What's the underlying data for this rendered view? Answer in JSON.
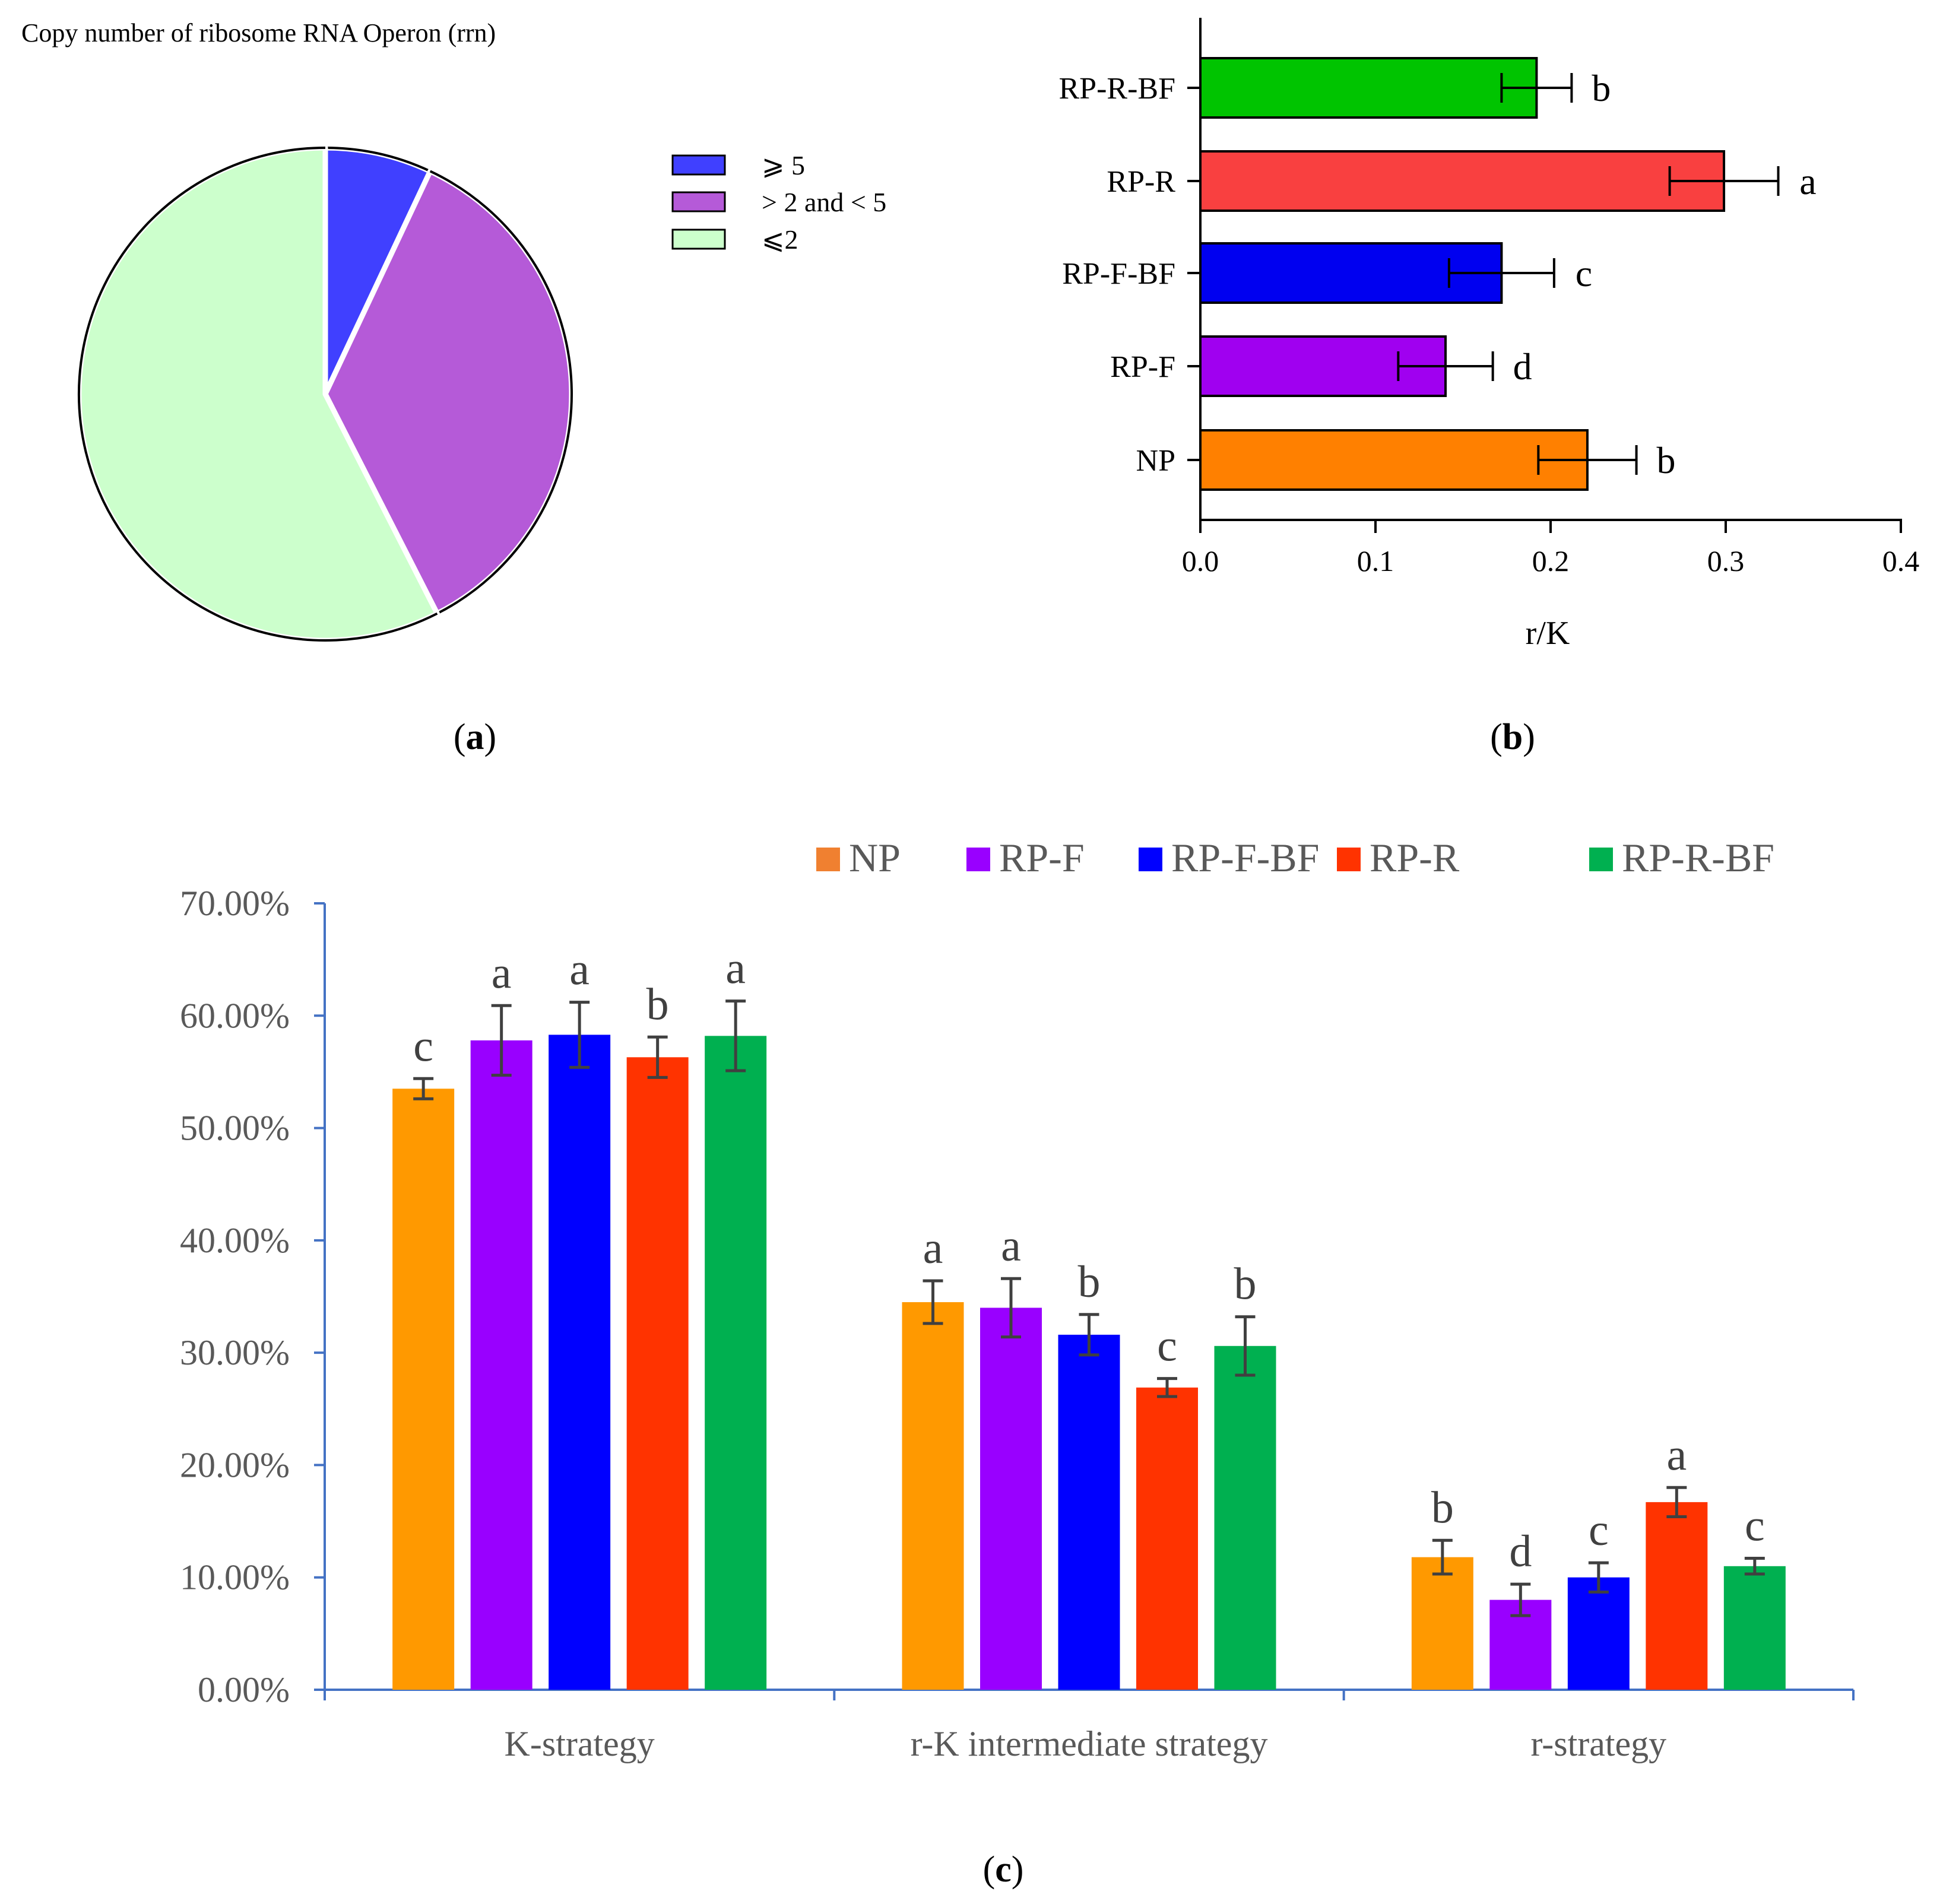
{
  "colors": {
    "NP": "#FF8000",
    "RP-F": "#A000F0",
    "RP-F-BF": "#0000F0",
    "RP-R": "#F94040",
    "RP-R-BF": "#00C400",
    "c_NP": "#FF9900",
    "c_NP_legend": "#F08030",
    "c_RP-F": "#9900FF",
    "c_RP-F-BF": "#0000FF",
    "c_RP-R": "#FF3300",
    "c_RP-R-BF": "#00B050",
    "pie_ge5": "#4040FF",
    "pie_2to5": "#B55AD8",
    "pie_le2": "#CCFFCC",
    "axis_c": "#4472C4",
    "tick_text_c": "#595959",
    "error_c": "#404040"
  },
  "panels": {
    "a_label": "a",
    "b_label": "b",
    "c_label": "c"
  },
  "chart_data": [
    {
      "id": "a",
      "type": "pie",
      "title": "Copy number of ribosome RNA Operon (rrn)",
      "slices": [
        {
          "label": "⩾ 5",
          "value": 7.0
        },
        {
          "label": "> 2 and < 5",
          "value": 35.5
        },
        {
          "label": "⩽2",
          "value": 57.5
        }
      ],
      "legend_position": "right"
    },
    {
      "id": "b",
      "type": "bar",
      "orientation": "horizontal",
      "categories": [
        "RP-R-BF",
        "RP-R",
        "RP-F-BF",
        "RP-F",
        "NP"
      ],
      "values": [
        0.192,
        0.299,
        0.172,
        0.14,
        0.221
      ],
      "errors": [
        0.02,
        0.031,
        0.03,
        0.027,
        0.028
      ],
      "significance": [
        "b",
        "a",
        "c",
        "d",
        "b"
      ],
      "xlabel": "r/K",
      "xlim": [
        0,
        0.4
      ],
      "xticks": [
        "0.0",
        "0.1",
        "0.2",
        "0.3",
        "0.4"
      ]
    },
    {
      "id": "c",
      "type": "bar",
      "categories": [
        "K-strategy",
        "r-K intermediate strategy",
        "r-strategy"
      ],
      "series": [
        {
          "name": "NP",
          "values": [
            53.5,
            34.5,
            11.8
          ],
          "errors": [
            0.9,
            1.9,
            1.5
          ],
          "letters": [
            "c",
            "a",
            "b"
          ]
        },
        {
          "name": "RP-F",
          "values": [
            57.8,
            34.0,
            8.0
          ],
          "errors": [
            3.1,
            2.6,
            1.4
          ],
          "letters": [
            "a",
            "a",
            "d"
          ]
        },
        {
          "name": "RP-F-BF",
          "values": [
            58.3,
            31.6,
            10.0
          ],
          "errors": [
            2.9,
            1.8,
            1.3
          ],
          "letters": [
            "a",
            "b",
            "c"
          ]
        },
        {
          "name": "RP-R",
          "values": [
            56.3,
            26.9,
            16.7
          ],
          "errors": [
            1.8,
            0.8,
            1.3
          ],
          "letters": [
            "b",
            "c",
            "a"
          ]
        },
        {
          "name": "RP-R-BF",
          "values": [
            58.2,
            30.6,
            11.0
          ],
          "errors": [
            3.1,
            2.6,
            0.7
          ],
          "letters": [
            "a",
            "b",
            "c"
          ]
        }
      ],
      "ylim": [
        0,
        70
      ],
      "yticks": [
        "0.00%",
        "10.00%",
        "20.00%",
        "30.00%",
        "40.00%",
        "50.00%",
        "60.00%",
        "70.00%"
      ],
      "legend_position": "top"
    }
  ]
}
